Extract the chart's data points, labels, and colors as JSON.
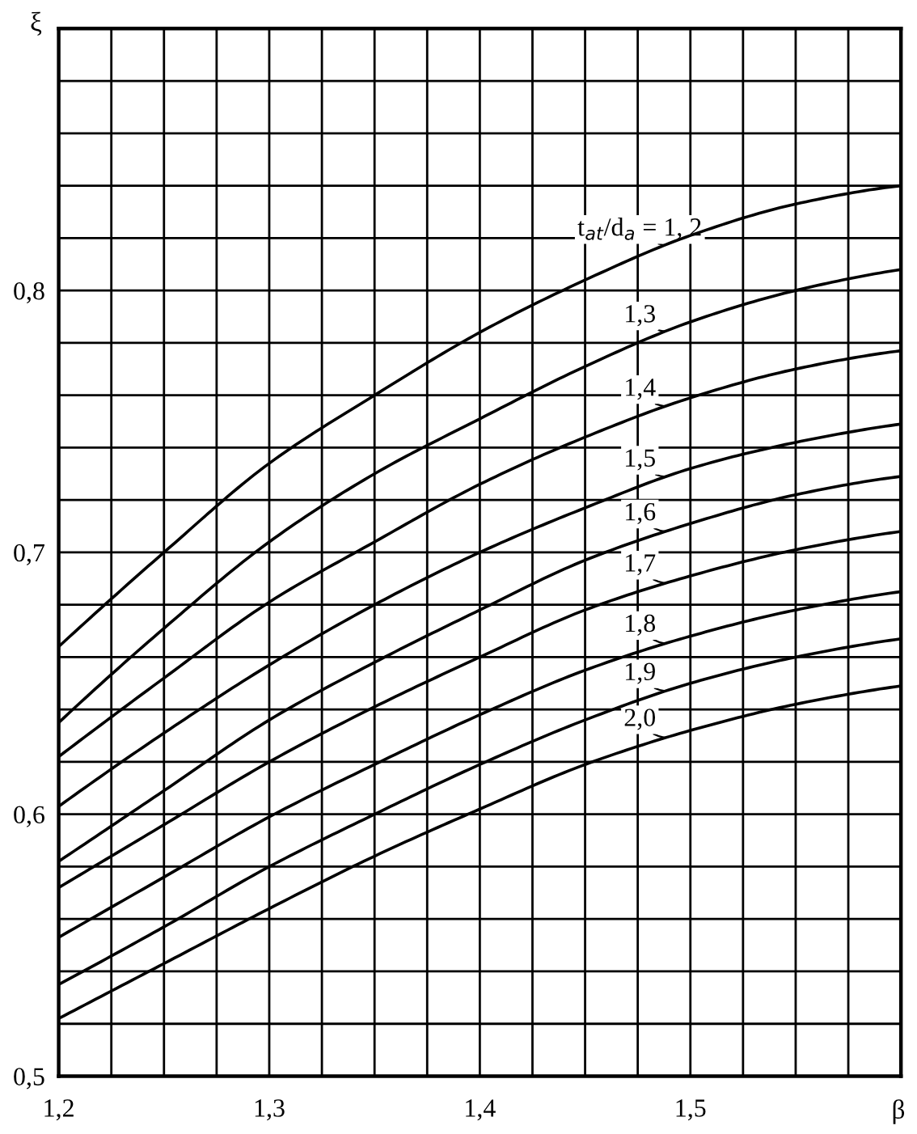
{
  "chart_data": {
    "type": "line",
    "xlabel": "β",
    "ylabel": "ξ",
    "xlim": [
      1.2,
      1.6
    ],
    "ylim": [
      0.5,
      0.9
    ],
    "xticks": [
      {
        "value": 1.2,
        "label": "1,2"
      },
      {
        "value": 1.225,
        "label": null
      },
      {
        "value": 1.25,
        "label": null
      },
      {
        "value": 1.275,
        "label": null
      },
      {
        "value": 1.3,
        "label": "1,3"
      },
      {
        "value": 1.325,
        "label": null
      },
      {
        "value": 1.35,
        "label": null
      },
      {
        "value": 1.375,
        "label": null
      },
      {
        "value": 1.4,
        "label": "1,4"
      },
      {
        "value": 1.425,
        "label": null
      },
      {
        "value": 1.45,
        "label": null
      },
      {
        "value": 1.475,
        "label": null
      },
      {
        "value": 1.5,
        "label": "1,5"
      },
      {
        "value": 1.525,
        "label": null
      },
      {
        "value": 1.55,
        "label": null
      },
      {
        "value": 1.575,
        "label": null
      },
      {
        "value": 1.6,
        "label": null
      }
    ],
    "yticks": [
      {
        "value": 0.5,
        "label": "0,5"
      },
      {
        "value": 0.52,
        "label": null
      },
      {
        "value": 0.54,
        "label": null
      },
      {
        "value": 0.56,
        "label": null
      },
      {
        "value": 0.58,
        "label": null
      },
      {
        "value": 0.6,
        "label": "0,6"
      },
      {
        "value": 0.62,
        "label": null
      },
      {
        "value": 0.64,
        "label": null
      },
      {
        "value": 0.66,
        "label": null
      },
      {
        "value": 0.68,
        "label": null
      },
      {
        "value": 0.7,
        "label": "0,7"
      },
      {
        "value": 0.72,
        "label": null
      },
      {
        "value": 0.74,
        "label": null
      },
      {
        "value": 0.76,
        "label": null
      },
      {
        "value": 0.78,
        "label": null
      },
      {
        "value": 0.8,
        "label": "0,8"
      },
      {
        "value": 0.82,
        "label": null
      },
      {
        "value": 0.84,
        "label": null
      },
      {
        "value": 0.86,
        "label": null
      },
      {
        "value": 0.88,
        "label": null
      },
      {
        "value": 0.9,
        "label": null
      }
    ],
    "grid": true,
    "legend": "right",
    "x": [
      1.2,
      1.25,
      1.3,
      1.35,
      1.4,
      1.45,
      1.5,
      1.55,
      1.6
    ],
    "series": [
      {
        "name": "t$_{at}$/d$_{a}$ = 1, 2",
        "color": "#000000",
        "values": [
          0.664,
          0.7,
          0.734,
          0.76,
          0.784,
          0.804,
          0.821,
          0.833,
          0.84
        ]
      },
      {
        "name": "1,3",
        "color": "#000000",
        "values": [
          0.635,
          0.671,
          0.704,
          0.73,
          0.751,
          0.771,
          0.788,
          0.8,
          0.808
        ]
      },
      {
        "name": "1,4",
        "color": "#000000",
        "values": [
          0.622,
          0.652,
          0.681,
          0.704,
          0.726,
          0.744,
          0.759,
          0.77,
          0.777
        ]
      },
      {
        "name": "1,5",
        "color": "#000000",
        "values": [
          0.603,
          0.631,
          0.657,
          0.68,
          0.7,
          0.717,
          0.732,
          0.742,
          0.749
        ]
      },
      {
        "name": "1,6",
        "color": "#000000",
        "values": [
          0.582,
          0.609,
          0.636,
          0.658,
          0.678,
          0.697,
          0.711,
          0.722,
          0.729
        ]
      },
      {
        "name": "1,7",
        "color": "#000000",
        "values": [
          0.572,
          0.596,
          0.62,
          0.641,
          0.66,
          0.678,
          0.691,
          0.701,
          0.708
        ]
      },
      {
        "name": "1,8",
        "color": "#000000",
        "values": [
          0.553,
          0.576,
          0.599,
          0.619,
          0.638,
          0.655,
          0.668,
          0.678,
          0.685
        ]
      },
      {
        "name": "1,9",
        "color": "#000000",
        "values": [
          0.535,
          0.557,
          0.58,
          0.6,
          0.619,
          0.636,
          0.65,
          0.66,
          0.667
        ]
      },
      {
        "name": "2,0",
        "color": "#000000",
        "values": [
          0.522,
          0.543,
          0.564,
          0.584,
          0.602,
          0.619,
          0.632,
          0.642,
          0.649
        ]
      }
    ]
  }
}
